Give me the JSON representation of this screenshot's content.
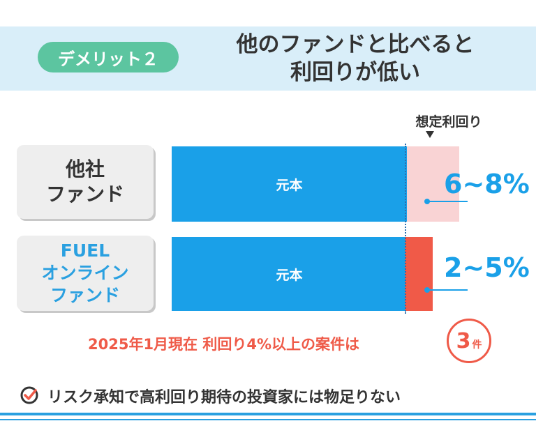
{
  "header": {
    "badge": "デメリット２",
    "title_line1": "他のファンドと比べると",
    "title_line2": "利回りが低い"
  },
  "comparison": {
    "assumed_yield_label": "想定利回り",
    "rows": [
      {
        "label_line1": "他社",
        "label_line2": "ファンド",
        "label_line3": "",
        "principal_label": "元本",
        "yield_text": "6~8%"
      },
      {
        "label_line1": "FUEL",
        "label_line2": "オンライン",
        "label_line3": "ファンド",
        "principal_label": "元本",
        "yield_text": "2~5%"
      }
    ]
  },
  "note": {
    "text": "2025年1月現在  利回り4%以上の案件は",
    "count": "3",
    "count_unit": "件"
  },
  "footer": {
    "text": "リスク承知で高利回り期待の投資家には物足りない"
  },
  "colors": {
    "header_band": "#d9eef9",
    "badge": "#5cc5a0",
    "principal": "#1aa0e8",
    "other_yield": "#f9d3d4",
    "fuel_yield": "#f05a48",
    "accent_red": "#ef5a48"
  }
}
